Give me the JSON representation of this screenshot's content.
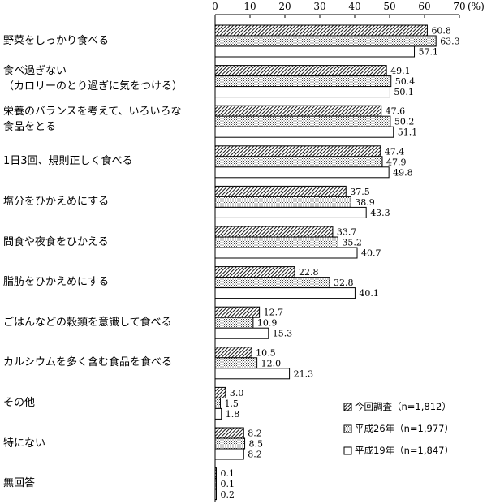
{
  "chart_data": {
    "type": "bar",
    "orientation": "horizontal",
    "categories": [
      [
        "野菜をしっかり食べる"
      ],
      [
        "食べ過ぎない",
        "（カロリーのとり過ぎに気をつける）"
      ],
      [
        "栄養のバランスを考えて、いろいろな",
        "食品をとる"
      ],
      [
        "1日3回、規則正しく食べる"
      ],
      [
        "塩分をひかえめにする"
      ],
      [
        "間食や夜食をひかえる"
      ],
      [
        "脂肪をひかえめにする"
      ],
      [
        "ごはんなどの穀類を意識して食べる"
      ],
      [
        "カルシウムを多く含む食品を食べる"
      ],
      [
        "その他"
      ],
      [
        "特にない"
      ],
      [
        "無回答"
      ]
    ],
    "series": [
      {
        "name": "今回調査（n=1,812）",
        "pattern": "hatch",
        "values": [
          60.8,
          49.1,
          47.6,
          47.4,
          37.5,
          33.7,
          22.8,
          12.7,
          10.5,
          3.0,
          8.2,
          0.1
        ]
      },
      {
        "name": "平成26年（n=1,977）",
        "pattern": "dots",
        "values": [
          63.3,
          50.4,
          50.2,
          47.9,
          38.9,
          35.2,
          32.8,
          10.9,
          12.0,
          1.5,
          8.5,
          0.1
        ]
      },
      {
        "name": "平成19年（n=1,847）",
        "pattern": "white",
        "values": [
          57.1,
          50.1,
          51.1,
          49.8,
          43.3,
          40.7,
          40.1,
          15.3,
          21.3,
          1.8,
          8.2,
          0.2
        ]
      }
    ],
    "value_labels": [
      [
        "60.8",
        "49.1",
        "47.6",
        "47.4",
        "37.5",
        "33.7",
        "22.8",
        "12.7",
        "10.5",
        "3.0",
        "8.2",
        "0.1"
      ],
      [
        "63.3",
        "50.4",
        "50.2",
        "47.9",
        "38.9",
        "35.2",
        "32.8",
        "10.9",
        "12.0",
        "1.5",
        "8.5",
        "0.1"
      ],
      [
        "57.1",
        "50.1",
        "51.1",
        "49.8",
        "43.3",
        "40.7",
        "40.1",
        "15.3",
        "21.3",
        "1.8",
        "8.2",
        "0.2"
      ]
    ],
    "x_ticks": [
      0,
      10,
      20,
      30,
      40,
      50,
      60,
      70
    ],
    "unit_label": "(%)",
    "xlim": [
      0,
      70
    ],
    "legend": [
      "今回調査（n=1,812）",
      "平成26年（n=1,977）",
      "平成19年（n=1,847）"
    ],
    "legend_position": "bottom-right",
    "grid": false
  }
}
